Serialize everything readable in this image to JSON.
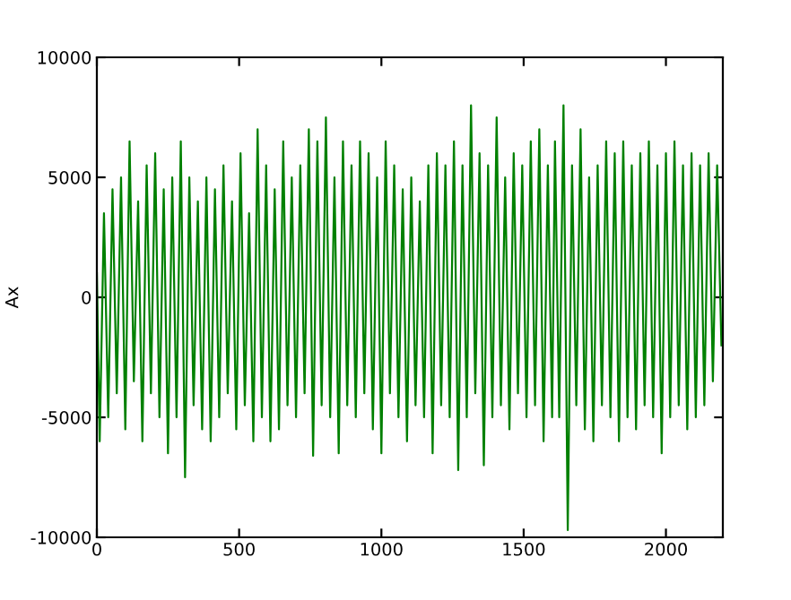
{
  "chart_data": {
    "type": "line",
    "ylabel": "Ax",
    "xlim": [
      0,
      2200
    ],
    "ylim": [
      -10000,
      10000
    ],
    "xticks": [
      0,
      500,
      1000,
      1500,
      2000
    ],
    "yticks": [
      -10000,
      -5000,
      0,
      5000,
      10000
    ],
    "grid": false,
    "legend": false,
    "marker": "none",
    "line_style": "solid",
    "series": [
      {
        "color": "#008000",
        "x": [
          0,
          10,
          25,
          40,
          55,
          70,
          85,
          100,
          115,
          130,
          145,
          160,
          175,
          190,
          205,
          220,
          235,
          250,
          265,
          280,
          295,
          310,
          325,
          340,
          355,
          370,
          385,
          400,
          415,
          430,
          445,
          460,
          475,
          490,
          505,
          520,
          535,
          550,
          565,
          580,
          595,
          610,
          625,
          640,
          655,
          670,
          685,
          700,
          715,
          730,
          745,
          760,
          775,
          790,
          805,
          820,
          835,
          850,
          865,
          880,
          895,
          910,
          925,
          940,
          955,
          970,
          985,
          1000,
          1015,
          1030,
          1045,
          1060,
          1075,
          1090,
          1105,
          1120,
          1135,
          1150,
          1165,
          1180,
          1195,
          1210,
          1225,
          1240,
          1255,
          1270,
          1285,
          1300,
          1315,
          1330,
          1345,
          1360,
          1375,
          1390,
          1405,
          1420,
          1435,
          1450,
          1465,
          1480,
          1495,
          1510,
          1525,
          1540,
          1555,
          1570,
          1585,
          1600,
          1610,
          1625,
          1640,
          1655,
          1670,
          1685,
          1700,
          1715,
          1730,
          1745,
          1760,
          1775,
          1790,
          1805,
          1820,
          1835,
          1850,
          1865,
          1880,
          1895,
          1910,
          1925,
          1940,
          1955,
          1970,
          1985,
          2000,
          2015,
          2030,
          2045,
          2060,
          2075,
          2090,
          2105,
          2120,
          2135,
          2150,
          2165,
          2180,
          2195
        ],
        "values": [
          1000,
          -6000,
          3500,
          -5000,
          4500,
          -4000,
          5000,
          -5500,
          6500,
          -3500,
          4000,
          -6000,
          5500,
          -4000,
          6000,
          -5000,
          4500,
          -6500,
          5000,
          -5000,
          6500,
          -7500,
          5000,
          -4500,
          4000,
          -5500,
          5000,
          -6000,
          4500,
          -5000,
          5500,
          -4000,
          4000,
          -5500,
          6000,
          -4500,
          3500,
          -6000,
          7000,
          -5000,
          5500,
          -6000,
          4500,
          -5500,
          6500,
          -4500,
          5000,
          -5000,
          5500,
          -4000,
          7000,
          -6600,
          6500,
          -4500,
          7500,
          -5000,
          5000,
          -6500,
          6500,
          -4500,
          5500,
          -5000,
          6500,
          -4000,
          6000,
          -5500,
          5000,
          -6500,
          6500,
          -4000,
          5500,
          -5000,
          4500,
          -6000,
          5000,
          -4500,
          4000,
          -5000,
          5500,
          -6500,
          6000,
          -4500,
          5500,
          -5000,
          6500,
          -7200,
          5500,
          -5000,
          8000,
          -4000,
          6000,
          -7000,
          5500,
          -5000,
          7500,
          -4500,
          5000,
          -5500,
          6000,
          -4000,
          5500,
          -5000,
          6500,
          -4500,
          7000,
          -6000,
          5500,
          -5000,
          6500,
          -5000,
          8000,
          -9700,
          5500,
          -4500,
          7000,
          -5500,
          5000,
          -6000,
          5500,
          -4500,
          6500,
          -5000,
          6000,
          -6000,
          6500,
          -5000,
          5500,
          -5500,
          6000,
          -4500,
          6500,
          -5000,
          5500,
          -6500,
          6000,
          -5000,
          6500,
          -4500,
          5500,
          -5500,
          6000,
          -5000,
          5500,
          -4500,
          6000,
          -3500,
          5500,
          -2000
        ]
      }
    ]
  }
}
